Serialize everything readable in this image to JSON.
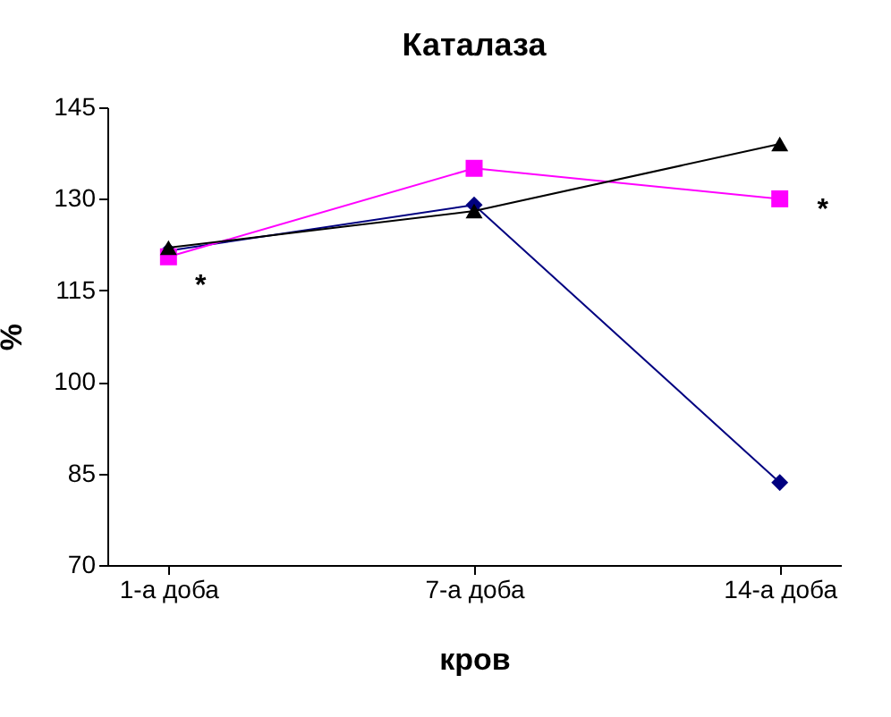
{
  "chart_data": {
    "type": "line",
    "title": "Каталаза",
    "xlabel": "кров",
    "ylabel": "%",
    "categories": [
      "1-а доба",
      "7-а доба",
      "14-а доба"
    ],
    "series": [
      {
        "color": "#000080",
        "marker": "diamond",
        "values": [
          121.5,
          129,
          83.5
        ]
      },
      {
        "color": "#ff00ff",
        "marker": "square",
        "values": [
          120.5,
          135,
          130
        ]
      },
      {
        "color": "#000000",
        "marker": "triangle",
        "values": [
          122,
          128,
          139
        ]
      }
    ],
    "ylim": [
      70,
      145
    ],
    "yticks": [
      70,
      85,
      100,
      115,
      130,
      145
    ],
    "grid": false,
    "annotations": [
      {
        "text": "*",
        "x": "1-а доба",
        "y": 120.5
      },
      {
        "text": "*",
        "x": "14-а доба",
        "y": 130
      }
    ]
  }
}
